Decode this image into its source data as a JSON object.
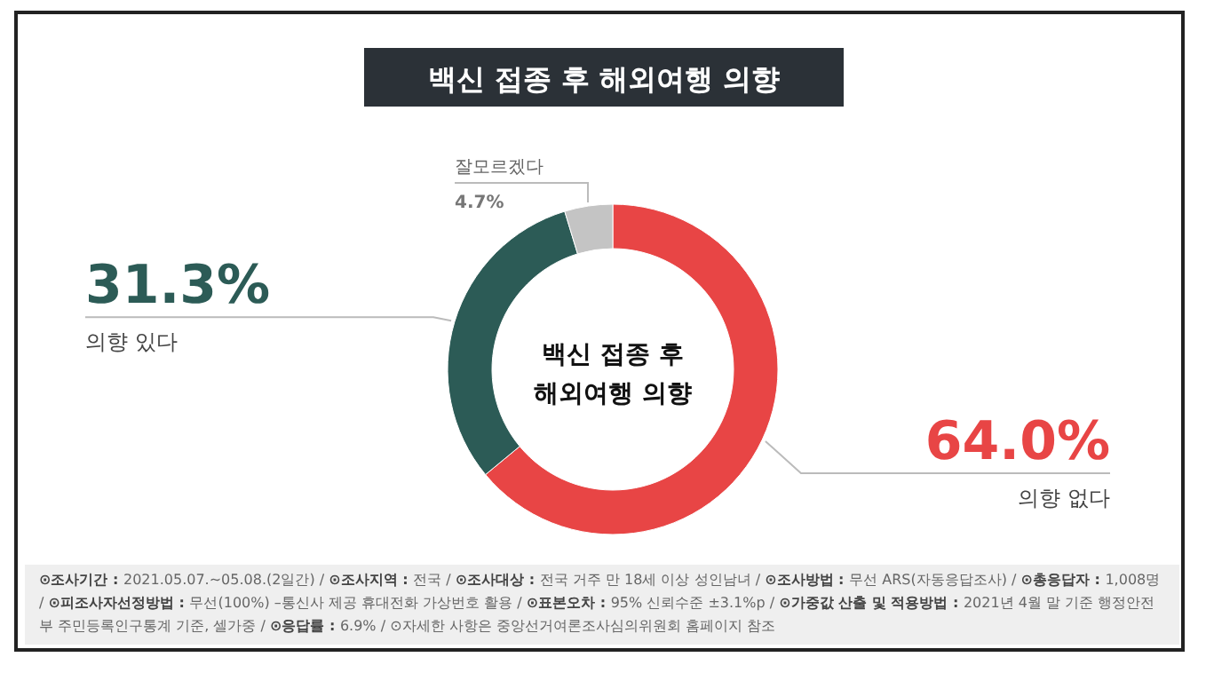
{
  "chart_data": {
    "type": "donut",
    "title": "백신 접종 후 해외여행 의향",
    "categories": [
      "의향 없다",
      "의향 있다",
      "잘모르겠다"
    ],
    "values": [
      64.0,
      31.3,
      4.7
    ],
    "value_labels": [
      "64.0%",
      "31.3%",
      "4.7%"
    ],
    "colors": [
      "#e84545",
      "#2c5b56",
      "#c4c4c4"
    ],
    "annotations": [
      "백신 접종 후",
      "해외여행 의향",
      "⊙조사기간 : 2021.05.07.~05.08.(2일간) /",
      "⊙조사지역 : 전국 /",
      "⊙조사대상 : 전국 거주 만 18세 이상 성인남녀 /",
      "⊙조사방법 : 무선 ARS(자동응답조사) /",
      "⊙총응답자 : 1,008명 /",
      "⊙피조사자선정방법 : 무선(100%) –통신사 제공 휴대전화 가상번호 활용 /",
      "⊙표본오차 : 95% 신뢰수준 ±3.1%p /",
      "⊙가중값 산출 및 적용방법 : 2021년 4월 말 기준 행정안전부 주민등록인구통계 기준, 셀가중 /",
      "⊙응답률 : 6.9% /",
      "⊙자세한 사항은 중앙선거여론조사심의위원회 홈페이지 참조"
    ]
  }
}
